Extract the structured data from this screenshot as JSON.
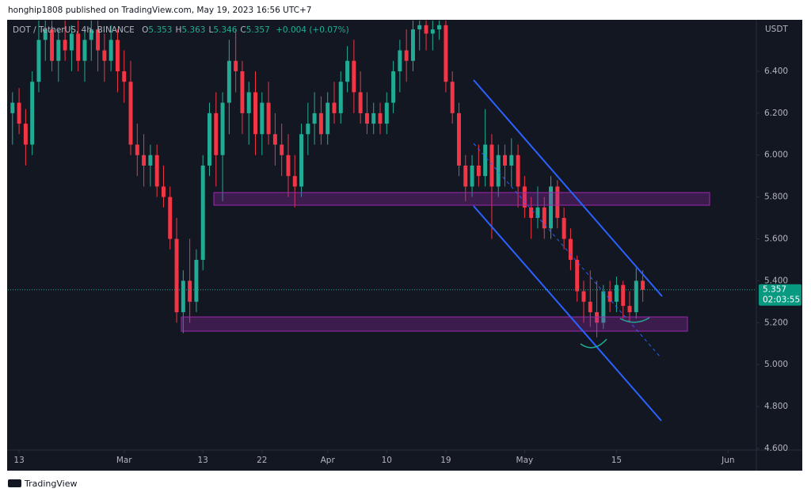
{
  "page_header": "honghip1808 published on TradingView.com, May 19, 2023 16:56 UTC+7",
  "footer": "TradingView",
  "chart_data": {
    "type": "candlestick",
    "symbol": "DOT / TetherUS, 4h, BINANCE",
    "ohlc": [
      {
        "label": "O",
        "value": 5.353
      },
      {
        "label": "H",
        "value": 5.363
      },
      {
        "label": "L",
        "value": 5.346
      },
      {
        "label": "C",
        "value": 5.357
      }
    ],
    "change": "+0.004 (+0.07%)",
    "y_axis_label": "USDT",
    "current_price": 5.357,
    "countdown": "02:03:55",
    "up_color": "#22ab94",
    "down_color": "#f23645",
    "grid": false,
    "ylim": [
      4.592,
      6.642
    ],
    "yticks": [
      {
        "value": 4.6,
        "label": "4.600"
      },
      {
        "value": 4.8,
        "label": "4.800"
      },
      {
        "value": 5.0,
        "label": "5.000"
      },
      {
        "value": 5.2,
        "label": "5.200"
      },
      {
        "value": 5.4,
        "label": "5.400"
      },
      {
        "value": 5.6,
        "label": "5.600"
      },
      {
        "value": 5.8,
        "label": "5.800"
      },
      {
        "value": 6.0,
        "label": "6.000"
      },
      {
        "value": 6.2,
        "label": "6.200"
      },
      {
        "value": 6.4,
        "label": "6.400"
      }
    ],
    "xlim": [
      42.3,
      156.3
    ],
    "xticks": [
      {
        "value": 44,
        "label": "13"
      },
      {
        "value": 60,
        "label": "Mar"
      },
      {
        "value": 72,
        "label": "13"
      },
      {
        "value": 81,
        "label": "22"
      },
      {
        "value": 91,
        "label": "Apr"
      },
      {
        "value": 100,
        "label": "10"
      },
      {
        "value": 109,
        "label": "19"
      },
      {
        "value": 121,
        "label": "May"
      },
      {
        "value": 135,
        "label": "15"
      },
      {
        "value": 152,
        "label": "Jun"
      }
    ],
    "x": [
      43,
      44,
      45,
      46,
      47,
      48,
      49,
      50,
      51,
      52,
      53,
      54,
      55,
      56,
      57,
      58,
      59,
      60,
      61,
      62,
      63,
      64,
      65,
      66,
      67,
      68,
      69,
      70,
      71,
      72,
      73,
      74,
      75,
      76,
      77,
      78,
      79,
      80,
      81,
      82,
      83,
      84,
      85,
      86,
      87,
      88,
      89,
      90,
      91,
      92,
      93,
      94,
      95,
      96,
      97,
      98,
      99,
      100,
      101,
      102,
      103,
      104,
      105,
      106,
      107,
      108,
      109,
      110,
      111,
      112,
      113,
      114,
      115,
      116,
      117,
      118,
      119,
      120,
      121,
      122,
      123,
      124,
      125,
      126,
      127,
      128,
      129,
      130,
      131,
      132,
      133,
      134,
      135,
      136,
      137,
      138,
      139
    ],
    "open": [
      6.2,
      6.25,
      6.15,
      6.05,
      6.35,
      6.55,
      6.6,
      6.45,
      6.55,
      6.5,
      6.58,
      6.45,
      6.55,
      6.6,
      6.5,
      6.45,
      6.55,
      6.4,
      6.35,
      6.05,
      6.0,
      5.95,
      6.0,
      5.85,
      5.8,
      5.6,
      5.25,
      5.4,
      5.3,
      5.5,
      5.95,
      6.2,
      6.0,
      6.25,
      6.45,
      6.4,
      6.2,
      6.3,
      6.1,
      6.25,
      6.1,
      6.05,
      6.0,
      5.9,
      5.85,
      6.1,
      6.15,
      6.2,
      6.1,
      6.25,
      6.2,
      6.35,
      6.45,
      6.3,
      6.2,
      6.15,
      6.2,
      6.15,
      6.25,
      6.4,
      6.5,
      6.45,
      6.6,
      6.62,
      6.58,
      6.6,
      6.62,
      6.35,
      6.2,
      5.95,
      5.85,
      5.95,
      5.9,
      6.05,
      5.85,
      6.0,
      5.95,
      6.0,
      5.85,
      5.75,
      5.7,
      5.75,
      5.65,
      5.85,
      5.7,
      5.6,
      5.5,
      5.35,
      5.3,
      5.25,
      5.2,
      5.35,
      5.3,
      5.38,
      5.28,
      5.25,
      5.4
    ],
    "high": [
      6.3,
      6.32,
      6.22,
      6.4,
      6.65,
      6.66,
      6.66,
      6.6,
      6.66,
      6.62,
      6.66,
      6.6,
      6.66,
      6.66,
      6.58,
      6.62,
      6.6,
      6.5,
      6.45,
      6.15,
      6.1,
      6.05,
      6.05,
      5.95,
      5.85,
      5.7,
      5.45,
      5.6,
      5.55,
      6.0,
      6.25,
      6.3,
      6.3,
      6.55,
      6.6,
      6.45,
      6.35,
      6.4,
      6.3,
      6.35,
      6.2,
      6.15,
      6.1,
      6.0,
      6.15,
      6.25,
      6.3,
      6.28,
      6.3,
      6.35,
      6.4,
      6.52,
      6.55,
      6.4,
      6.3,
      6.25,
      6.25,
      6.3,
      6.45,
      6.55,
      6.6,
      6.66,
      6.66,
      6.66,
      6.66,
      6.66,
      6.66,
      6.4,
      6.25,
      6.0,
      6.0,
      6.05,
      6.22,
      6.1,
      6.05,
      6.05,
      6.08,
      6.05,
      5.9,
      5.8,
      5.85,
      5.8,
      5.9,
      5.88,
      5.75,
      5.65,
      5.52,
      5.4,
      5.45,
      5.4,
      5.38,
      5.4,
      5.42,
      5.4,
      5.35,
      5.46,
      5.45
    ],
    "low": [
      6.05,
      6.1,
      5.95,
      6.0,
      6.3,
      6.45,
      6.4,
      6.35,
      6.45,
      6.4,
      6.4,
      6.35,
      6.45,
      6.4,
      6.35,
      6.4,
      6.3,
      6.25,
      6.0,
      5.9,
      5.85,
      5.85,
      5.8,
      5.75,
      5.55,
      5.2,
      5.15,
      5.2,
      5.25,
      5.45,
      5.9,
      5.85,
      5.78,
      6.1,
      6.3,
      6.1,
      6.05,
      6.0,
      6.0,
      6.05,
      5.95,
      5.9,
      5.8,
      5.75,
      5.8,
      6.0,
      6.05,
      6.05,
      6.05,
      6.15,
      6.15,
      6.3,
      6.2,
      6.15,
      6.1,
      6.1,
      6.1,
      6.1,
      6.2,
      6.3,
      6.35,
      6.4,
      6.5,
      6.5,
      6.5,
      6.55,
      6.3,
      6.15,
      5.9,
      5.78,
      5.8,
      5.85,
      5.85,
      5.6,
      5.8,
      5.85,
      5.85,
      5.75,
      5.7,
      5.6,
      5.65,
      5.6,
      5.6,
      5.65,
      5.55,
      5.45,
      5.3,
      5.2,
      5.18,
      5.13,
      5.17,
      5.25,
      5.25,
      5.22,
      5.2,
      5.22,
      5.3
    ],
    "close": [
      6.25,
      6.15,
      6.05,
      6.35,
      6.55,
      6.6,
      6.45,
      6.55,
      6.5,
      6.58,
      6.45,
      6.55,
      6.6,
      6.5,
      6.45,
      6.55,
      6.4,
      6.35,
      6.05,
      6.0,
      5.95,
      6.0,
      5.85,
      5.8,
      5.6,
      5.25,
      5.4,
      5.3,
      5.5,
      5.95,
      6.2,
      6.0,
      6.25,
      6.45,
      6.4,
      6.2,
      6.3,
      6.1,
      6.25,
      6.1,
      6.05,
      6.0,
      5.9,
      5.85,
      6.1,
      6.15,
      6.2,
      6.1,
      6.25,
      6.2,
      6.35,
      6.45,
      6.3,
      6.2,
      6.15,
      6.2,
      6.15,
      6.25,
      6.4,
      6.5,
      6.45,
      6.6,
      6.62,
      6.58,
      6.6,
      6.62,
      6.35,
      6.2,
      5.95,
      5.85,
      5.95,
      5.9,
      6.05,
      5.85,
      6.0,
      5.95,
      6.0,
      5.85,
      5.75,
      5.7,
      5.75,
      5.65,
      5.85,
      5.7,
      5.6,
      5.5,
      5.35,
      5.3,
      5.25,
      5.2,
      5.35,
      5.3,
      5.38,
      5.28,
      5.25,
      5.4,
      5.357
    ]
  }
}
